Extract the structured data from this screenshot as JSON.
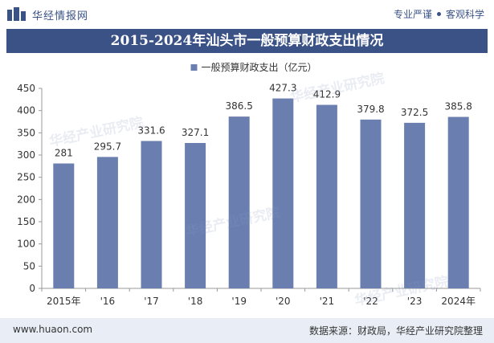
{
  "header": {
    "brand": "华经情报网",
    "tags": [
      "专业严谨",
      "客观科学"
    ]
  },
  "title": "2015-2024年汕头市一般预算财政支出情况",
  "legend": "一般预算财政支出（亿元）",
  "footer": {
    "site": "www.huaon.com",
    "source": "数据来源：财政局，华经产业研究院整理"
  },
  "watermark": "华经产业研究院",
  "colors": {
    "bar": "#6a7fb0",
    "accent": "#3a5286"
  },
  "chart_data": {
    "type": "bar",
    "categories": [
      "2015年",
      "'16",
      "'17",
      "'18",
      "'19",
      "'20",
      "'21",
      "'22",
      "'23",
      "2024年"
    ],
    "series": [
      {
        "name": "一般预算财政支出（亿元）",
        "values": [
          281,
          295.7,
          331.6,
          327.1,
          386.5,
          427.3,
          412.9,
          379.8,
          372.5,
          385.8
        ]
      }
    ],
    "data_labels": [
      "281",
      "295.7",
      "331.6",
      "327.1",
      "386.5",
      "427.3",
      "412.9",
      "379.8",
      "372.5",
      "385.8"
    ],
    "ylim": [
      0,
      450
    ],
    "yticks": [
      0,
      50,
      100,
      150,
      200,
      250,
      300,
      350,
      400,
      450
    ],
    "grid": false,
    "legend_position": "top-center"
  }
}
